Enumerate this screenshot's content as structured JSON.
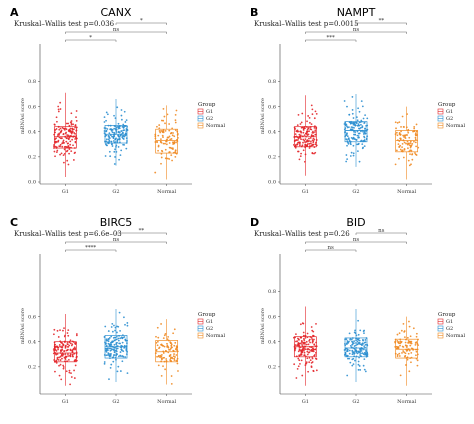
{
  "colors": {
    "G1": "#e3262a",
    "G2": "#2c8fd0",
    "Normal": "#f08a22"
  },
  "chart_data": [
    {
      "type": "box-jitter",
      "panel": "A",
      "title": "CANX",
      "subtitle": "Kruskal–Wallis test p=0.036",
      "ylabel": "mRNAsi score",
      "categories": [
        "G1",
        "G2",
        "Normal"
      ],
      "ylim": [
        0,
        1.05
      ],
      "yticks": [
        0.0,
        0.2,
        0.4,
        0.6,
        0.8
      ],
      "ytick_labels": [
        "0.0",
        "0.2",
        "0.4",
        "0.6",
        "0.8"
      ],
      "boxes": [
        {
          "group": "G1",
          "min": 0.04,
          "q1": 0.27,
          "median": 0.36,
          "q3": 0.44,
          "max": 0.71,
          "n": 160
        },
        {
          "group": "G2",
          "min": 0.13,
          "q1": 0.31,
          "median": 0.38,
          "q3": 0.45,
          "max": 0.66,
          "n": 160
        },
        {
          "group": "Normal",
          "min": 0.02,
          "q1": 0.23,
          "median": 0.33,
          "q3": 0.42,
          "max": 0.61,
          "n": 100
        }
      ],
      "comparisons": [
        {
          "a": "G1",
          "b": "G2",
          "label": "*"
        },
        {
          "a": "G1",
          "b": "Normal",
          "label": "ns"
        },
        {
          "a": "G2",
          "b": "Normal",
          "label": "*"
        }
      ],
      "legend": {
        "title": "Group",
        "items": [
          "G1",
          "G2",
          "Normal"
        ],
        "placement": "right"
      }
    },
    {
      "type": "box-jitter",
      "panel": "B",
      "title": "NAMPT",
      "subtitle": "Kruskal–Wallis test p=0.0015",
      "ylabel": "mRNAsi score",
      "categories": [
        "G1",
        "G2",
        "Normal"
      ],
      "ylim": [
        0,
        1.05
      ],
      "yticks": [
        0.0,
        0.2,
        0.4,
        0.6,
        0.8
      ],
      "ytick_labels": [
        "0.0",
        "0.2",
        "0.4",
        "0.6",
        "0.8"
      ],
      "boxes": [
        {
          "group": "G1",
          "min": 0.05,
          "q1": 0.28,
          "median": 0.36,
          "q3": 0.44,
          "max": 0.69,
          "n": 160
        },
        {
          "group": "G2",
          "min": 0.12,
          "q1": 0.32,
          "median": 0.41,
          "q3": 0.48,
          "max": 0.7,
          "n": 160
        },
        {
          "group": "Normal",
          "min": 0.02,
          "q1": 0.24,
          "median": 0.33,
          "q3": 0.41,
          "max": 0.6,
          "n": 100
        }
      ],
      "comparisons": [
        {
          "a": "G1",
          "b": "G2",
          "label": "***"
        },
        {
          "a": "G1",
          "b": "Normal",
          "label": "ns"
        },
        {
          "a": "G2",
          "b": "Normal",
          "label": "**"
        }
      ],
      "legend": {
        "title": "Group",
        "items": [
          "G1",
          "G2",
          "Normal"
        ],
        "placement": "right"
      }
    },
    {
      "type": "box-jitter",
      "panel": "C",
      "title": "BIRC5",
      "subtitle": "Kruskal–Wallis test p=6.6e–03",
      "ylabel": "mRNAsi score",
      "categories": [
        "G1",
        "G2",
        "Normal"
      ],
      "ylim": [
        0,
        1.05
      ],
      "yticks": [
        0.2,
        0.4,
        0.6
      ],
      "ytick_labels": [
        "0.2",
        "0.4",
        "0.6"
      ],
      "boxes": [
        {
          "group": "G1",
          "min": 0.05,
          "q1": 0.24,
          "median": 0.31,
          "q3": 0.4,
          "max": 0.62,
          "n": 160
        },
        {
          "group": "G2",
          "min": 0.08,
          "q1": 0.27,
          "median": 0.36,
          "q3": 0.45,
          "max": 0.66,
          "n": 160
        },
        {
          "group": "Normal",
          "min": 0.06,
          "q1": 0.24,
          "median": 0.32,
          "q3": 0.41,
          "max": 0.58,
          "n": 100
        }
      ],
      "comparisons": [
        {
          "a": "G1",
          "b": "G2",
          "label": "****"
        },
        {
          "a": "G1",
          "b": "Normal",
          "label": "ns"
        },
        {
          "a": "G2",
          "b": "Normal",
          "label": "**"
        }
      ],
      "legend": {
        "title": "Group",
        "items": [
          "G1",
          "G2",
          "Normal"
        ],
        "placement": "right"
      }
    },
    {
      "type": "box-jitter",
      "panel": "D",
      "title": "BID",
      "subtitle": "Kruskal–Wallis test p=0.26",
      "ylabel": "mRNAsi score",
      "categories": [
        "G1",
        "G2",
        "Normal"
      ],
      "ylim": [
        0,
        1.05
      ],
      "yticks": [
        0.2,
        0.4,
        0.6,
        0.8
      ],
      "ytick_labels": [
        "0.2",
        "0.4",
        "0.6",
        "0.8"
      ],
      "boxes": [
        {
          "group": "G1",
          "min": 0.05,
          "q1": 0.28,
          "median": 0.36,
          "q3": 0.44,
          "max": 0.68,
          "n": 160
        },
        {
          "group": "G2",
          "min": 0.08,
          "q1": 0.28,
          "median": 0.35,
          "q3": 0.43,
          "max": 0.66,
          "n": 160
        },
        {
          "group": "Normal",
          "min": 0.05,
          "q1": 0.27,
          "median": 0.34,
          "q3": 0.42,
          "max": 0.6,
          "n": 100
        }
      ],
      "comparisons": [
        {
          "a": "G1",
          "b": "G2",
          "label": "ns"
        },
        {
          "a": "G1",
          "b": "Normal",
          "label": "ns"
        },
        {
          "a": "G2",
          "b": "Normal",
          "label": "ns"
        }
      ],
      "legend": {
        "title": "Group",
        "items": [
          "G1",
          "G2",
          "Normal"
        ],
        "placement": "right"
      }
    }
  ]
}
